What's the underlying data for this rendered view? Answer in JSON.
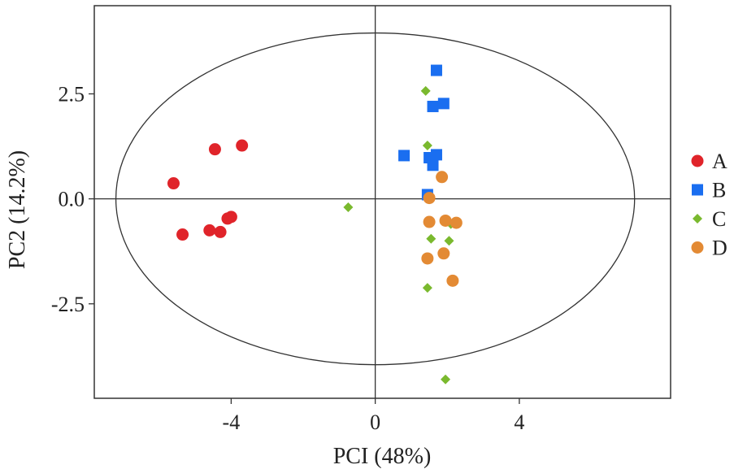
{
  "chart_data": {
    "type": "scatter",
    "xlabel": "PCI (48%)",
    "ylabel": "PC2 (14.2%)",
    "xlim": [
      -7.8,
      8.2
    ],
    "ylim": [
      -4.75,
      4.6
    ],
    "x_ticks": [
      -4,
      0,
      4
    ],
    "x_tick_labels": [
      "-4",
      "0",
      "4"
    ],
    "y_ticks": [
      2.5,
      0.0,
      -2.5
    ],
    "y_tick_labels": [
      "2.5",
      "0.0",
      "-2.5"
    ],
    "grid": false,
    "reference_lines": {
      "x": 0,
      "y": 0
    },
    "confidence_ellipse": {
      "cx": 0.0,
      "cy": 0.0,
      "rx": 7.2,
      "ry": 3.95
    },
    "legend_position": "right",
    "series": [
      {
        "name": "A",
        "marker": "circle",
        "color": "#e0242a",
        "points": [
          {
            "x": -3.7,
            "y": 1.27
          },
          {
            "x": -4.45,
            "y": 1.18
          },
          {
            "x": -5.6,
            "y": 0.37
          },
          {
            "x": -5.35,
            "y": -0.85
          },
          {
            "x": -4.6,
            "y": -0.75
          },
          {
            "x": -4.3,
            "y": -0.79
          },
          {
            "x": -4.1,
            "y": -0.47
          },
          {
            "x": -4.0,
            "y": -0.43
          }
        ]
      },
      {
        "name": "B",
        "marker": "square",
        "color": "#1a6ef0",
        "points": [
          {
            "x": 1.7,
            "y": 3.06
          },
          {
            "x": 1.6,
            "y": 2.2
          },
          {
            "x": 1.9,
            "y": 2.27
          },
          {
            "x": 0.8,
            "y": 1.03
          },
          {
            "x": 1.5,
            "y": 0.98
          },
          {
            "x": 1.7,
            "y": 1.05
          },
          {
            "x": 1.6,
            "y": 0.8
          },
          {
            "x": 1.45,
            "y": 0.1
          }
        ]
      },
      {
        "name": "C",
        "marker": "diamond",
        "color": "#7ab92e",
        "points": [
          {
            "x": 1.4,
            "y": 2.57
          },
          {
            "x": 1.45,
            "y": 1.27
          },
          {
            "x": -0.75,
            "y": -0.2
          },
          {
            "x": 1.55,
            "y": -0.95
          },
          {
            "x": 2.05,
            "y": -1.0
          },
          {
            "x": 2.1,
            "y": -0.6
          },
          {
            "x": 1.45,
            "y": -2.12
          },
          {
            "x": 1.95,
            "y": -4.3
          }
        ]
      },
      {
        "name": "D",
        "marker": "circle",
        "color": "#e38a34",
        "points": [
          {
            "x": 1.85,
            "y": 0.52
          },
          {
            "x": 1.5,
            "y": 0.02
          },
          {
            "x": 1.5,
            "y": -0.55
          },
          {
            "x": 1.95,
            "y": -0.52
          },
          {
            "x": 2.25,
            "y": -0.57
          },
          {
            "x": 1.45,
            "y": -1.42
          },
          {
            "x": 1.9,
            "y": -1.3
          },
          {
            "x": 2.15,
            "y": -1.95
          }
        ]
      }
    ]
  }
}
